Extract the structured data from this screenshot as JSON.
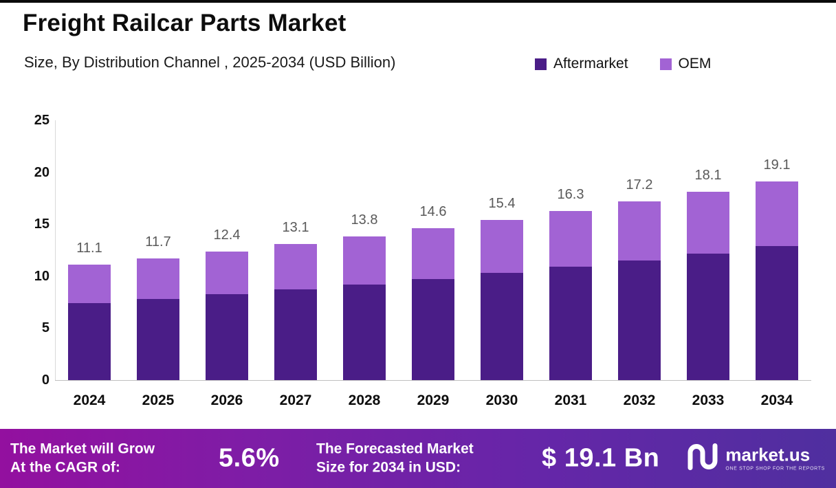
{
  "header": {
    "title": "Freight Railcar Parts Market",
    "subtitle": "Size, By Distribution Channel , 2025-2034 (USD Billion)"
  },
  "chart_data": {
    "type": "bar",
    "stacked": true,
    "title": "Freight Railcar Parts Market",
    "subtitle": "Size, By Distribution Channel , 2025-2034 (USD Billion)",
    "categories": [
      "2024",
      "2025",
      "2026",
      "2027",
      "2028",
      "2029",
      "2030",
      "2031",
      "2032",
      "2033",
      "2034"
    ],
    "series": [
      {
        "name": "Aftermarket",
        "color": "#4a1d87",
        "values": [
          7.4,
          7.8,
          8.3,
          8.7,
          9.2,
          9.7,
          10.3,
          10.9,
          11.5,
          12.2,
          12.9
        ]
      },
      {
        "name": "OEM",
        "color": "#a263d4",
        "values": [
          3.7,
          3.9,
          4.1,
          4.4,
          4.6,
          4.9,
          5.1,
          5.4,
          5.7,
          5.9,
          6.2
        ]
      }
    ],
    "totals": [
      11.1,
      11.7,
      12.4,
      13.1,
      13.8,
      14.6,
      15.4,
      16.3,
      17.2,
      18.1,
      19.1
    ],
    "xlabel": "",
    "ylabel": "",
    "ylim": [
      0,
      25
    ],
    "yticks": [
      0,
      5,
      10,
      15,
      20,
      25
    ],
    "grid": false,
    "legend_position": "top-right",
    "bar_value_color": "#595959"
  },
  "footer": {
    "cagr_label_line1": "The Market will Grow",
    "cagr_label_line2": "At the CAGR of:",
    "cagr_value": "5.6%",
    "forecast_label_line1": "The Forecasted Market",
    "forecast_label_line2": "Size for 2034 in USD:",
    "forecast_value": "$ 19.1 Bn",
    "brand_name": "market.us",
    "brand_tagline": "ONE STOP SHOP FOR THE REPORTS"
  }
}
